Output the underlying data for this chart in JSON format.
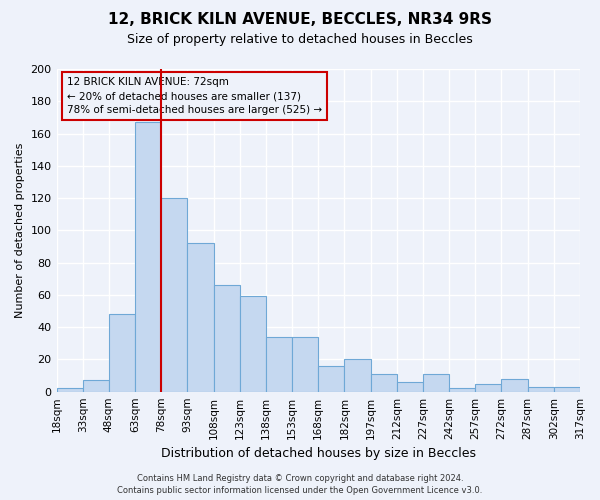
{
  "title": "12, BRICK KILN AVENUE, BECCLES, NR34 9RS",
  "subtitle": "Size of property relative to detached houses in Beccles",
  "xlabel": "Distribution of detached houses by size in Beccles",
  "ylabel": "Number of detached properties",
  "bar_labels": [
    "18sqm",
    "33sqm",
    "48sqm",
    "63sqm",
    "78sqm",
    "93sqm",
    "108sqm",
    "123sqm",
    "138sqm",
    "153sqm",
    "168sqm",
    "182sqm",
    "197sqm",
    "212sqm",
    "227sqm",
    "242sqm",
    "257sqm",
    "272sqm",
    "287sqm",
    "302sqm",
    "317sqm"
  ],
  "bar_values": [
    2,
    7,
    48,
    167,
    120,
    92,
    66,
    59,
    34,
    34,
    16,
    20,
    11,
    6,
    11,
    2,
    5,
    8,
    3,
    3
  ],
  "bar_color": "#c5d8f0",
  "bar_edge_color": "#6fa8d6",
  "ylim": [
    0,
    200
  ],
  "yticks": [
    0,
    20,
    40,
    60,
    80,
    100,
    120,
    140,
    160,
    180,
    200
  ],
  "vline_color": "#cc0000",
  "vline_position": 3.5,
  "annotation_title": "12 BRICK KILN AVENUE: 72sqm",
  "annotation_line1": "← 20% of detached houses are smaller (137)",
  "annotation_line2": "78% of semi-detached houses are larger (525) →",
  "annotation_box_color": "#cc0000",
  "footer1": "Contains HM Land Registry data © Crown copyright and database right 2024.",
  "footer2": "Contains public sector information licensed under the Open Government Licence v3.0.",
  "background_color": "#eef2fa",
  "grid_color": "#ffffff"
}
